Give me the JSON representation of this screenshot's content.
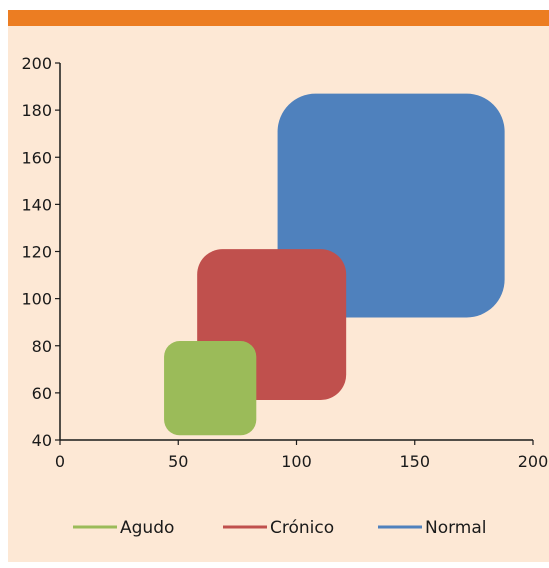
{
  "colors": {
    "background": "#fde8d5",
    "topbar": "#ec7d22",
    "agudo": "#9bbb59",
    "cronico": "#c0504d",
    "normal": "#4f81bd"
  },
  "chart_data": {
    "type": "scatter",
    "title": "",
    "xlabel": "",
    "ylabel": "",
    "xlim": [
      0,
      200
    ],
    "ylim": [
      40,
      200
    ],
    "xticks": [
      0,
      50,
      100,
      150,
      200
    ],
    "yticks": [
      40,
      60,
      80,
      100,
      120,
      140,
      160,
      180,
      200
    ],
    "grid": false,
    "legend_position": "bottom",
    "series": [
      {
        "name": "Normal",
        "color": "#4f81bd",
        "x_range": [
          92,
          188
        ],
        "y_range": [
          92,
          187
        ]
      },
      {
        "name": "Crónico",
        "color": "#c0504d",
        "x_range": [
          58,
          121
        ],
        "y_range": [
          57,
          121
        ]
      },
      {
        "name": "Agudo",
        "color": "#9bbb59",
        "x_range": [
          44,
          83
        ],
        "y_range": [
          42,
          82
        ]
      }
    ],
    "legend": [
      "Agudo",
      "Crónico",
      "Normal"
    ]
  }
}
